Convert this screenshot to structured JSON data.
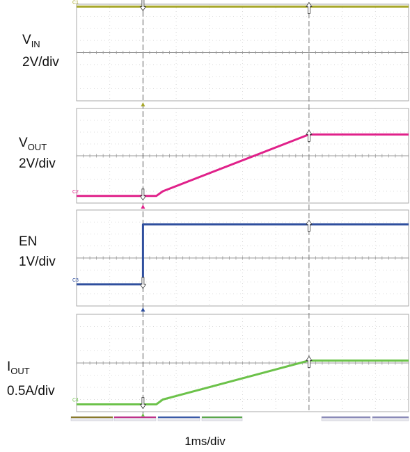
{
  "chart_data": {
    "type": "line",
    "x_scale_label": "1ms/div",
    "x_divisions": 10,
    "y_divisions_per_panel": 8,
    "markers": {
      "trigger_div": 2.0,
      "cursor_div": 7.0
    },
    "channels": [
      {
        "id": "C1",
        "color": "#a7a72a",
        "name_main": "V",
        "name_sub": "IN",
        "scale": "2V/div",
        "points": [
          [
            0,
            7.8
          ],
          [
            10,
            7.8
          ]
        ]
      },
      {
        "id": "C2",
        "color": "#e0218a",
        "name_main": "V",
        "name_sub": "OUT",
        "scale": "2V/div",
        "points": [
          [
            0,
            0.6
          ],
          [
            2.4,
            0.6
          ],
          [
            2.6,
            1.0
          ],
          [
            7.0,
            5.8
          ],
          [
            10,
            5.8
          ]
        ]
      },
      {
        "id": "C3",
        "color": "#2f4f9e",
        "name_main": "EN",
        "name_sub": "",
        "scale": "1V/div",
        "points": [
          [
            0,
            1.8
          ],
          [
            2.0,
            1.8
          ],
          [
            2.0,
            6.8
          ],
          [
            10,
            6.8
          ]
        ]
      },
      {
        "id": "C4",
        "color": "#6cc24a",
        "name_main": "I",
        "name_sub": "OUT",
        "scale": "0.5A/div",
        "points": [
          [
            0,
            0.6
          ],
          [
            2.4,
            0.6
          ],
          [
            2.6,
            1.0
          ],
          [
            7.0,
            4.2
          ],
          [
            10,
            4.2
          ]
        ]
      }
    ]
  }
}
